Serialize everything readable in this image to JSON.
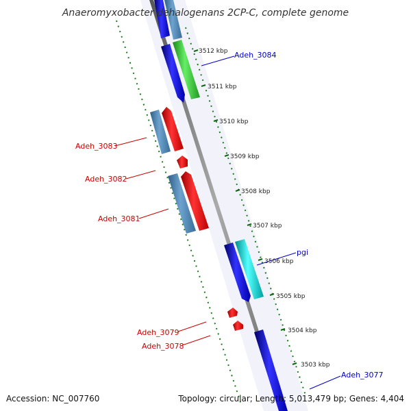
{
  "title": "Anaeromyxobacter dehalogenans 2CP-C, complete genome",
  "footer": {
    "accession": "Accession: NC_007760",
    "topology": "Topology: circular; Length: 5,013,479 bp; Genes: 4,404"
  },
  "scale_labels": [
    {
      "text": "3512 kbp"
    },
    {
      "text": "3511 kbp"
    },
    {
      "text": "3510 kbp"
    },
    {
      "text": "3509 kbp"
    },
    {
      "text": "3508 kbp"
    },
    {
      "text": "3507 kbp"
    },
    {
      "text": "3506 kbp"
    },
    {
      "text": "3505 kbp"
    },
    {
      "text": "3504 kbp"
    },
    {
      "text": "3503 kbp"
    }
  ],
  "gene_labels": [
    {
      "text": "Adeh_3084",
      "color": "#0000cc"
    },
    {
      "text": "Adeh_3083",
      "color": "#cc0000"
    },
    {
      "text": "Adeh_3082",
      "color": "#cc0000"
    },
    {
      "text": "Adeh_3081",
      "color": "#cc0000"
    },
    {
      "text": "pgi",
      "color": "#0000cc"
    },
    {
      "text": "Adeh_3079",
      "color": "#cc0000"
    },
    {
      "text": "Adeh_3078",
      "color": "#cc0000"
    },
    {
      "text": "Adeh_3077",
      "color": "#0000cc"
    }
  ],
  "colors": {
    "forward_cds": "#0000ff",
    "reverse_cds": "#ff0000",
    "cog_steelblue": "#4682b4",
    "cog_green": "#33cc33",
    "cog_cyan": "#00cccc",
    "backbone": "#808080",
    "ticks": "#006600"
  }
}
